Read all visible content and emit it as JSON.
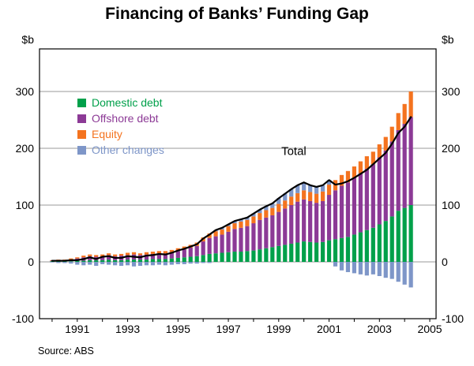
{
  "title": "Financing of Banks’ Funding Gap",
  "source": "Source: ABS",
  "axis": {
    "unit_left": "$b",
    "unit_right": "$b",
    "y_ticks": [
      300,
      200,
      100,
      0,
      -100
    ],
    "ylim": [
      -100,
      375
    ],
    "x_labels": [
      "1991",
      "1993",
      "1995",
      "1997",
      "1999",
      "2001",
      "2003",
      "2005"
    ],
    "x_range": [
      1989.5,
      2005.25
    ],
    "grid": true
  },
  "legend": {
    "items": [
      {
        "label": "Domestic debt",
        "color": "#00a04a"
      },
      {
        "label": "Offshore debt",
        "color": "#8c3a96"
      },
      {
        "label": "Equity",
        "color": "#f4731f"
      },
      {
        "label": "Other changes",
        "color": "#7e96c8"
      }
    ]
  },
  "chart_data": {
    "type": "stacked_bar_line",
    "x_start": 1990.0,
    "x_step": 0.25,
    "count": 58,
    "units": "$b",
    "legend_position": "upper-left",
    "series": [
      {
        "name": "Domestic debt",
        "color": "#00a04a",
        "values": [
          1,
          1,
          1,
          1,
          2,
          2,
          3,
          3,
          3,
          4,
          3,
          3,
          4,
          4,
          4,
          4,
          5,
          5,
          5,
          6,
          7,
          8,
          9,
          10,
          12,
          14,
          15,
          16,
          17,
          18,
          18,
          19,
          20,
          22,
          24,
          26,
          28,
          30,
          32,
          34,
          36,
          35,
          34,
          35,
          38,
          40,
          42,
          44,
          48,
          52,
          56,
          60,
          66,
          72,
          80,
          90,
          95,
          100
        ]
      },
      {
        "name": "Offshore debt",
        "color": "#8c3a96",
        "values": [
          1,
          2,
          2,
          3,
          4,
          6,
          7,
          6,
          7,
          8,
          7,
          8,
          8,
          9,
          8,
          9,
          9,
          10,
          10,
          11,
          12,
          14,
          16,
          18,
          24,
          28,
          30,
          32,
          36,
          40,
          42,
          44,
          48,
          52,
          54,
          56,
          60,
          64,
          68,
          72,
          74,
          72,
          70,
          72,
          80,
          86,
          92,
          96,
          100,
          104,
          108,
          112,
          118,
          124,
          132,
          142,
          148,
          155
        ]
      },
      {
        "name": "Equity",
        "color": "#f4731f",
        "values": [
          1,
          1,
          1,
          2,
          2,
          3,
          3,
          3,
          3,
          3,
          3,
          3,
          4,
          4,
          3,
          4,
          4,
          4,
          4,
          4,
          5,
          5,
          5,
          6,
          7,
          8,
          9,
          9,
          10,
          10,
          11,
          11,
          12,
          12,
          13,
          13,
          14,
          14,
          15,
          15,
          16,
          16,
          16,
          17,
          18,
          18,
          19,
          20,
          20,
          21,
          22,
          22,
          23,
          24,
          26,
          30,
          35,
          45
        ]
      },
      {
        "name": "Other changes",
        "color": "#7e96c8",
        "values": [
          -1,
          -2,
          -2,
          -3,
          -5,
          -6,
          -5,
          -7,
          -4,
          -5,
          -6,
          -7,
          -6,
          -8,
          -7,
          -6,
          -6,
          -5,
          -6,
          -5,
          -4,
          -4,
          -3,
          -3,
          -2,
          -2,
          2,
          3,
          3,
          4,
          4,
          4,
          5,
          6,
          7,
          8,
          10,
          12,
          13,
          14,
          14,
          12,
          12,
          11,
          8,
          -8,
          -15,
          -18,
          -20,
          -22,
          -24,
          -22,
          -25,
          -28,
          -30,
          -35,
          -40,
          -45
        ]
      }
    ],
    "total_line": {
      "label": "Total",
      "color": "#000000",
      "note": "sum of all series"
    },
    "label_pos": {
      "x": 1999.6,
      "y": 188
    }
  }
}
